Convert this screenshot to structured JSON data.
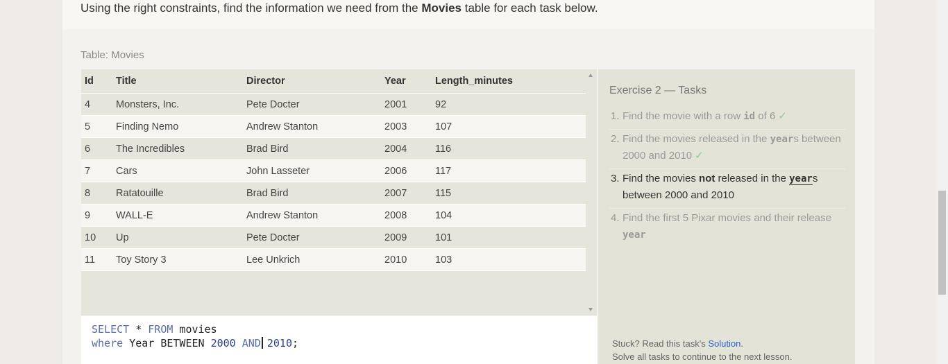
{
  "intro": {
    "before": "Using the right constraints, find the information we need from the ",
    "bold": "Movies",
    "after": " table for each task below."
  },
  "table": {
    "label": "Table: Movies",
    "columns": [
      "Id",
      "Title",
      "Director",
      "Year",
      "Length_minutes"
    ],
    "rows": [
      [
        "4",
        "Monsters, Inc.",
        "Pete Docter",
        "2001",
        "92"
      ],
      [
        "5",
        "Finding Nemo",
        "Andrew Stanton",
        "2003",
        "107"
      ],
      [
        "6",
        "The Incredibles",
        "Brad Bird",
        "2004",
        "116"
      ],
      [
        "7",
        "Cars",
        "John Lasseter",
        "2006",
        "117"
      ],
      [
        "8",
        "Ratatouille",
        "Brad Bird",
        "2007",
        "115"
      ],
      [
        "9",
        "WALL-E",
        "Andrew Stanton",
        "2008",
        "104"
      ],
      [
        "10",
        "Up",
        "Pete Docter",
        "2009",
        "101"
      ],
      [
        "11",
        "Toy Story 3",
        "Lee Unkrich",
        "2010",
        "103"
      ]
    ]
  },
  "editor": {
    "line1": {
      "kw1": "SELECT",
      "star": " * ",
      "kw2": "FROM",
      "rest": " movies"
    },
    "line2": {
      "kw1": "where",
      "mid": " Year BETWEEN ",
      "n1": "2000",
      "kw2": " AND",
      "n2": " 2010",
      "end": ";"
    }
  },
  "tasks": {
    "title": "Exercise 2 — Tasks",
    "items": [
      {
        "num": "1.",
        "pre": "Find the movie with a row ",
        "code": "id",
        "post": " of 6",
        "check": "✓"
      },
      {
        "num": "2.",
        "pre": "Find the movies released in the ",
        "code": "year",
        "post": "s between 2000 and 2010",
        "check": "✓"
      },
      {
        "num": "3.",
        "pre": "Find the movies ",
        "bold": "not",
        "mid": " released in the ",
        "code": "year",
        "post": "s between 2000 and 2010"
      },
      {
        "num": "4.",
        "pre": "Find the first 5 Pixar movies and their release ",
        "code": "year"
      }
    ]
  },
  "help": {
    "stuck": "Stuck? Read this task's ",
    "link": "Solution",
    "dot": ".",
    "next": "Solve all tasks to continue to the next lesson."
  },
  "colors": {
    "link": "#2a62c9",
    "check": "#8fc98f",
    "keyword": "#5b6cab",
    "number": "#2b3d8c"
  }
}
